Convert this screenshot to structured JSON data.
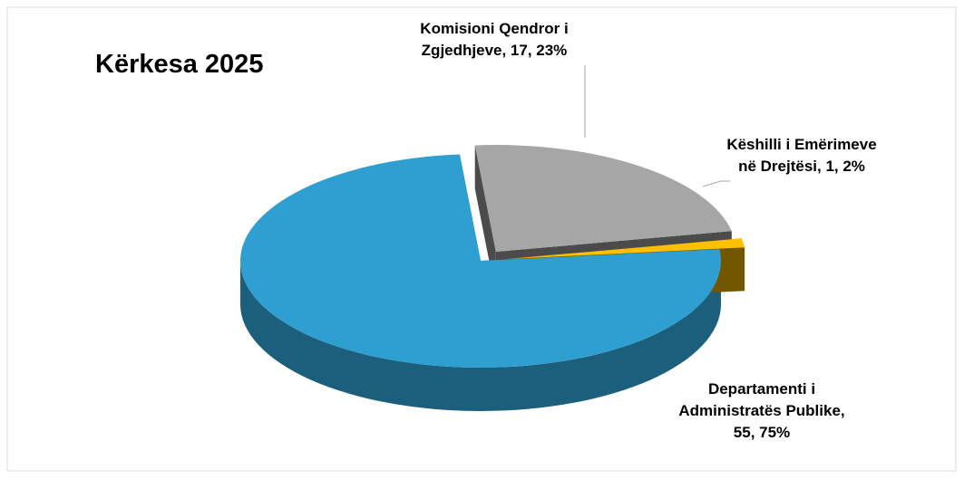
{
  "chart_data": {
    "type": "pie",
    "title": "Kërkesa 2025",
    "values": [
      55,
      17,
      1
    ],
    "value_labels": [
      "Departamenti i Administratës Publike, 55, 75%",
      "Komisioni Qendror i Zgjedhjeve, 17, 23%",
      "Këshilli i Emërimeve në Drejtësi, 1, 2%"
    ],
    "colors": [
      "#2e9fd0",
      "#a6a6a6",
      "#ffc000"
    ]
  }
}
